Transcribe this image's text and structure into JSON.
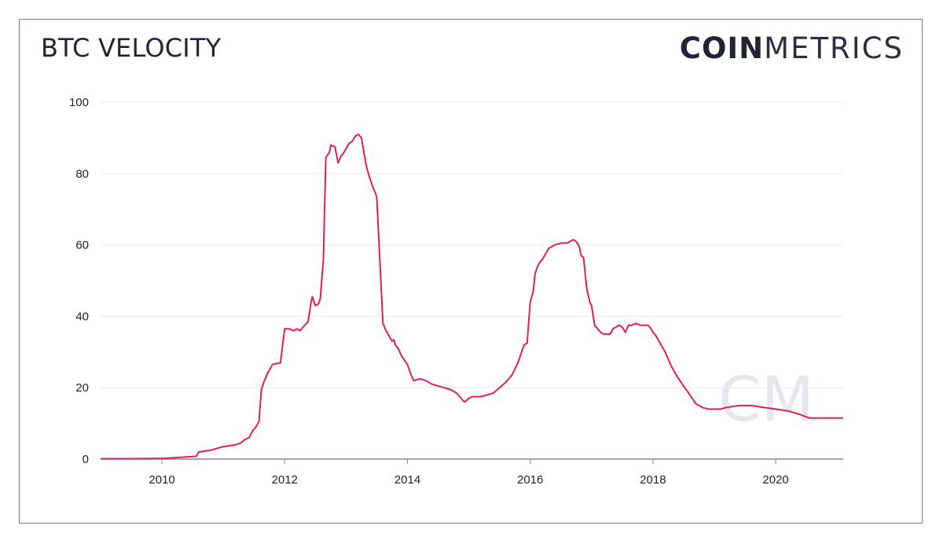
{
  "header": {
    "title": "BTC VELOCITY"
  },
  "brand": {
    "bold": "COIN",
    "light": "METRICS",
    "watermark": "CM"
  },
  "colors": {
    "line": "#e0214f",
    "grid": "#ececec",
    "axis": "#888888",
    "text": "#1f2533"
  },
  "chart_data": {
    "type": "line",
    "title": "BTC VELOCITY",
    "xlabel": "",
    "ylabel": "",
    "xlim": [
      2009.0,
      2021.1
    ],
    "ylim": [
      0,
      100
    ],
    "x_ticks": [
      2010,
      2012,
      2014,
      2016,
      2018,
      2020
    ],
    "x_tick_labels": [
      "2010",
      "2012",
      "2014",
      "2016",
      "2018",
      "2020"
    ],
    "y_ticks": [
      0,
      20,
      40,
      60,
      80,
      100
    ],
    "y_tick_labels": [
      "0",
      "20",
      "40",
      "60",
      "80",
      "100"
    ],
    "grid": "horizontal",
    "series": [
      {
        "x": [
          2009.0,
          2009.5,
          2010.0,
          2010.3,
          2010.5,
          2010.56,
          2010.6,
          2010.8,
          2011.0,
          2011.2,
          2011.28,
          2011.35,
          2011.42,
          2011.48,
          2011.53,
          2011.58,
          2011.62,
          2011.67,
          2011.72,
          2011.8,
          2011.93,
          2012.0,
          2012.03,
          2012.07,
          2012.15,
          2012.2,
          2012.25,
          2012.3,
          2012.38,
          2012.43,
          2012.45,
          2012.5,
          2012.55,
          2012.58,
          2012.63,
          2012.67,
          2012.73,
          2012.75,
          2012.82,
          2012.87,
          2012.92,
          2012.95,
          2013.0,
          2013.05,
          2013.1,
          2013.15,
          2013.2,
          2013.25,
          2013.33,
          2013.38,
          2013.43,
          2013.5,
          2013.6,
          2013.65,
          2013.7,
          2013.75,
          2013.78,
          2013.8,
          2013.85,
          2013.9,
          2014.0,
          2014.05,
          2014.1,
          2014.2,
          2014.3,
          2014.4,
          2014.5,
          2014.6,
          2014.7,
          2014.8,
          2014.9,
          2014.93,
          2015.0,
          2015.05,
          2015.1,
          2015.15,
          2015.2,
          2015.3,
          2015.4,
          2015.5,
          2015.6,
          2015.7,
          2015.8,
          2015.9,
          2015.95,
          2016.0,
          2016.05,
          2016.08,
          2016.12,
          2016.15,
          2016.2,
          2016.25,
          2016.3,
          2016.4,
          2016.5,
          2016.6,
          2016.65,
          2016.7,
          2016.75,
          2016.8,
          2016.83,
          2016.87,
          2016.92,
          2016.97,
          2017.0,
          2017.05,
          2017.1,
          2017.15,
          2017.2,
          2017.25,
          2017.3,
          2017.35,
          2017.45,
          2017.5,
          2017.55,
          2017.6,
          2017.65,
          2017.72,
          2017.8,
          2017.87,
          2017.92,
          2017.95,
          2018.0,
          2018.05,
          2018.1,
          2018.2,
          2018.3,
          2018.4,
          2018.5,
          2018.6,
          2018.7,
          2018.8,
          2018.9,
          2019.0,
          2019.1,
          2019.2,
          2019.4,
          2019.5,
          2019.6,
          2019.8,
          2020.0,
          2020.2,
          2020.3,
          2020.4,
          2020.55,
          2020.7,
          2020.9,
          2021.1
        ],
        "values": [
          0.1,
          0.1,
          0.2,
          0.5,
          0.7,
          0.8,
          2.0,
          2.5,
          3.5,
          4.0,
          4.5,
          5.5,
          6.0,
          8.0,
          9.0,
          10.5,
          19.5,
          22.0,
          24.0,
          26.5,
          27.0,
          36.5,
          36.5,
          36.5,
          36.0,
          36.5,
          36.0,
          37.0,
          38.5,
          44.0,
          45.5,
          43.0,
          43.5,
          45.0,
          56.0,
          84.5,
          86.0,
          88.0,
          87.5,
          83.0,
          85.0,
          85.5,
          87.0,
          88.5,
          89.0,
          90.5,
          91.0,
          90.0,
          82.0,
          79.0,
          76.5,
          73.5,
          38.0,
          36.0,
          34.5,
          33.0,
          33.5,
          32.0,
          31.0,
          29.0,
          26.5,
          24.0,
          22.0,
          22.5,
          22.0,
          21.0,
          20.5,
          20.0,
          19.5,
          18.5,
          16.5,
          16.0,
          17.0,
          17.5,
          17.5,
          17.5,
          17.5,
          18.0,
          18.5,
          20.0,
          21.5,
          23.5,
          27.0,
          32.0,
          32.5,
          44.0,
          47.0,
          52.0,
          54.0,
          55.0,
          56.0,
          57.5,
          59.0,
          60.0,
          60.5,
          60.5,
          61.0,
          61.5,
          61.0,
          59.5,
          57.0,
          56.5,
          48.0,
          44.0,
          43.0,
          37.5,
          36.5,
          35.5,
          35.0,
          35.0,
          35.0,
          36.5,
          37.5,
          37.0,
          35.5,
          37.5,
          37.5,
          38.0,
          37.5,
          37.5,
          37.5,
          37.0,
          35.5,
          34.5,
          33.0,
          30.0,
          26.0,
          23.0,
          20.5,
          18.0,
          15.5,
          14.5,
          14.0,
          14.0,
          14.0,
          14.5,
          15.0,
          15.0,
          15.0,
          14.5,
          14.0,
          13.5,
          13.0,
          12.5,
          11.5,
          11.5,
          11.5,
          11.5
        ]
      }
    ]
  }
}
